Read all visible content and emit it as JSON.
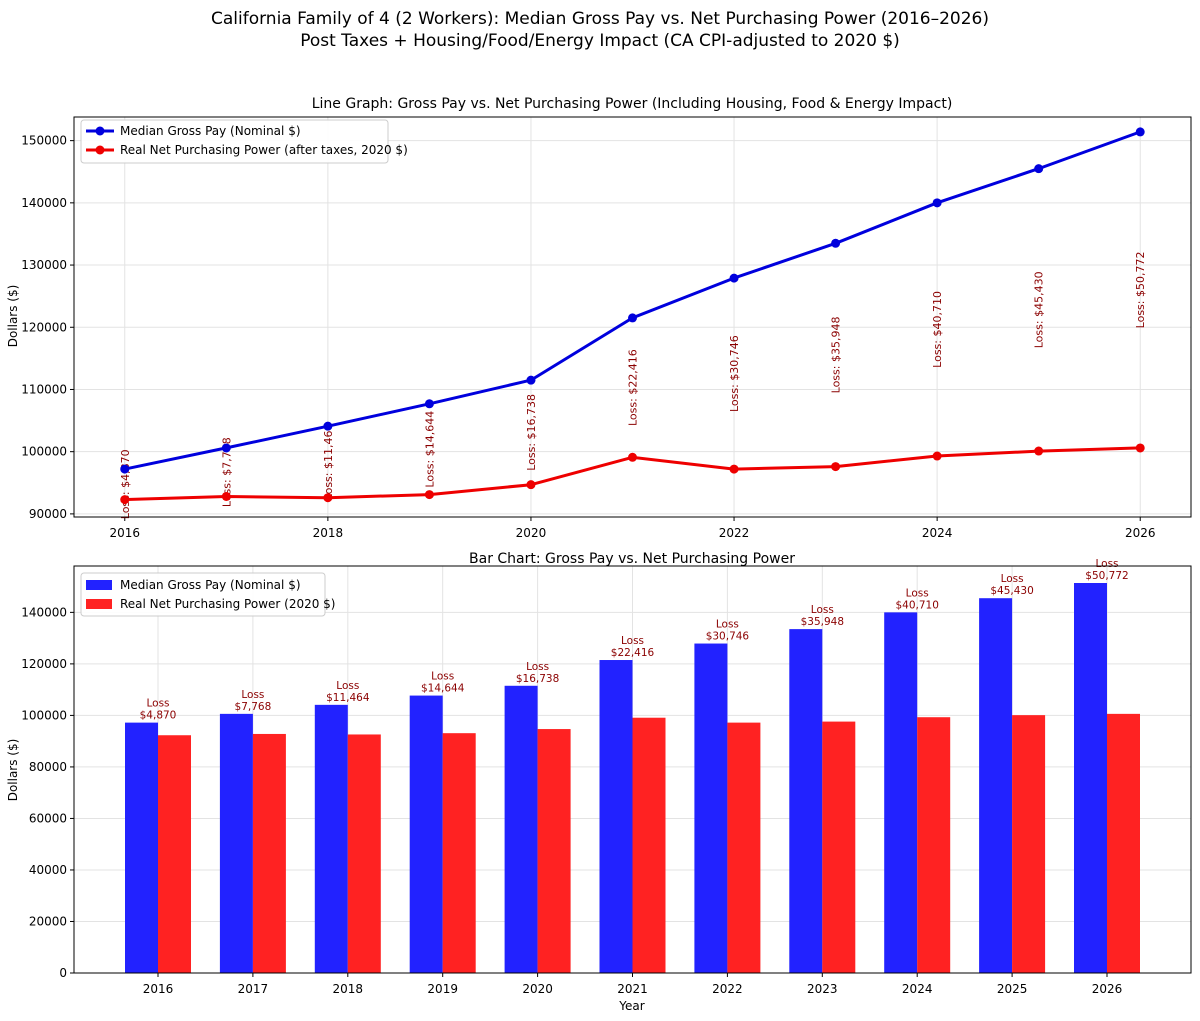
{
  "suptitle": {
    "line1": "California Family of 4 (2 Workers): Median Gross Pay vs. Net Purchasing Power (2016–2026)",
    "line2": "Post Taxes + Housing/Food/Energy Impact (CA CPI-adjusted to 2020 $)"
  },
  "colors": {
    "gross": "#0000dd",
    "net": "#ee0000",
    "bar_gross": "#2222ff",
    "bar_net": "#ff2222",
    "loss": "#8b0000"
  },
  "chart_data": [
    {
      "type": "line",
      "title": "Line Graph: Gross Pay vs. Net Purchasing Power (Including Housing, Food & Energy Impact)",
      "xlabel": "",
      "ylabel": "Dollars ($)",
      "x": [
        2016,
        2017,
        2018,
        2019,
        2020,
        2021,
        2022,
        2023,
        2024,
        2025,
        2026
      ],
      "x_ticks": [
        "2016",
        "2018",
        "2020",
        "2022",
        "2024",
        "2026"
      ],
      "xlim": [
        2015.5,
        2026.5
      ],
      "ylim": [
        89500,
        153800
      ],
      "y_ticks": [
        "90000",
        "100000",
        "110000",
        "120000",
        "130000",
        "140000",
        "150000"
      ],
      "series": [
        {
          "name": "Median Gross Pay (Nominal $)",
          "values": [
            97200,
            100600,
            104100,
            107700,
            111500,
            121500,
            127900,
            133500,
            140000,
            145500,
            151400
          ]
        },
        {
          "name": "Real Net Purchasing Power (after taxes, 2020 $)",
          "values": [
            92300,
            92800,
            92600,
            93100,
            94700,
            99100,
            97200,
            97600,
            99300,
            100100,
            100600
          ]
        }
      ],
      "annotations": [
        "Loss: $4,870",
        "Loss: $7,768",
        "Loss: $11,464",
        "Loss: $14,644",
        "Loss: $16,738",
        "Loss: $22,416",
        "Loss: $30,746",
        "Loss: $35,948",
        "Loss: $40,710",
        "Loss: $45,430",
        "Loss: $50,772"
      ],
      "legend": "upper-left",
      "grid": true
    },
    {
      "type": "bar",
      "title": "Bar Chart: Gross Pay vs. Net Purchasing Power",
      "xlabel": "Year",
      "ylabel": "Dollars ($)",
      "categories": [
        "2016",
        "2017",
        "2018",
        "2019",
        "2020",
        "2021",
        "2022",
        "2023",
        "2024",
        "2025",
        "2026"
      ],
      "ylim": [
        0,
        158000
      ],
      "y_ticks": [
        "0",
        "20000",
        "40000",
        "60000",
        "80000",
        "100000",
        "120000",
        "140000"
      ],
      "series": [
        {
          "name": "Median Gross Pay (Nominal $)",
          "values": [
            97200,
            100600,
            104100,
            107700,
            111500,
            121500,
            127900,
            133500,
            140000,
            145500,
            151400
          ]
        },
        {
          "name": "Real Net Purchasing Power (2020 $)",
          "values": [
            92300,
            92800,
            92600,
            93100,
            94700,
            99100,
            97200,
            97600,
            99300,
            100100,
            100600
          ]
        }
      ],
      "annotations": [
        [
          "Loss",
          "$4,870"
        ],
        [
          "Loss",
          "$7,768"
        ],
        [
          "Loss",
          "$11,464"
        ],
        [
          "Loss",
          "$14,644"
        ],
        [
          "Loss",
          "$16,738"
        ],
        [
          "Loss",
          "$22,416"
        ],
        [
          "Loss",
          "$30,746"
        ],
        [
          "Loss",
          "$35,948"
        ],
        [
          "Loss",
          "$40,710"
        ],
        [
          "Loss",
          "$45,430"
        ],
        [
          "Loss",
          "$50,772"
        ]
      ],
      "legend": "upper-left",
      "grid": true
    }
  ]
}
